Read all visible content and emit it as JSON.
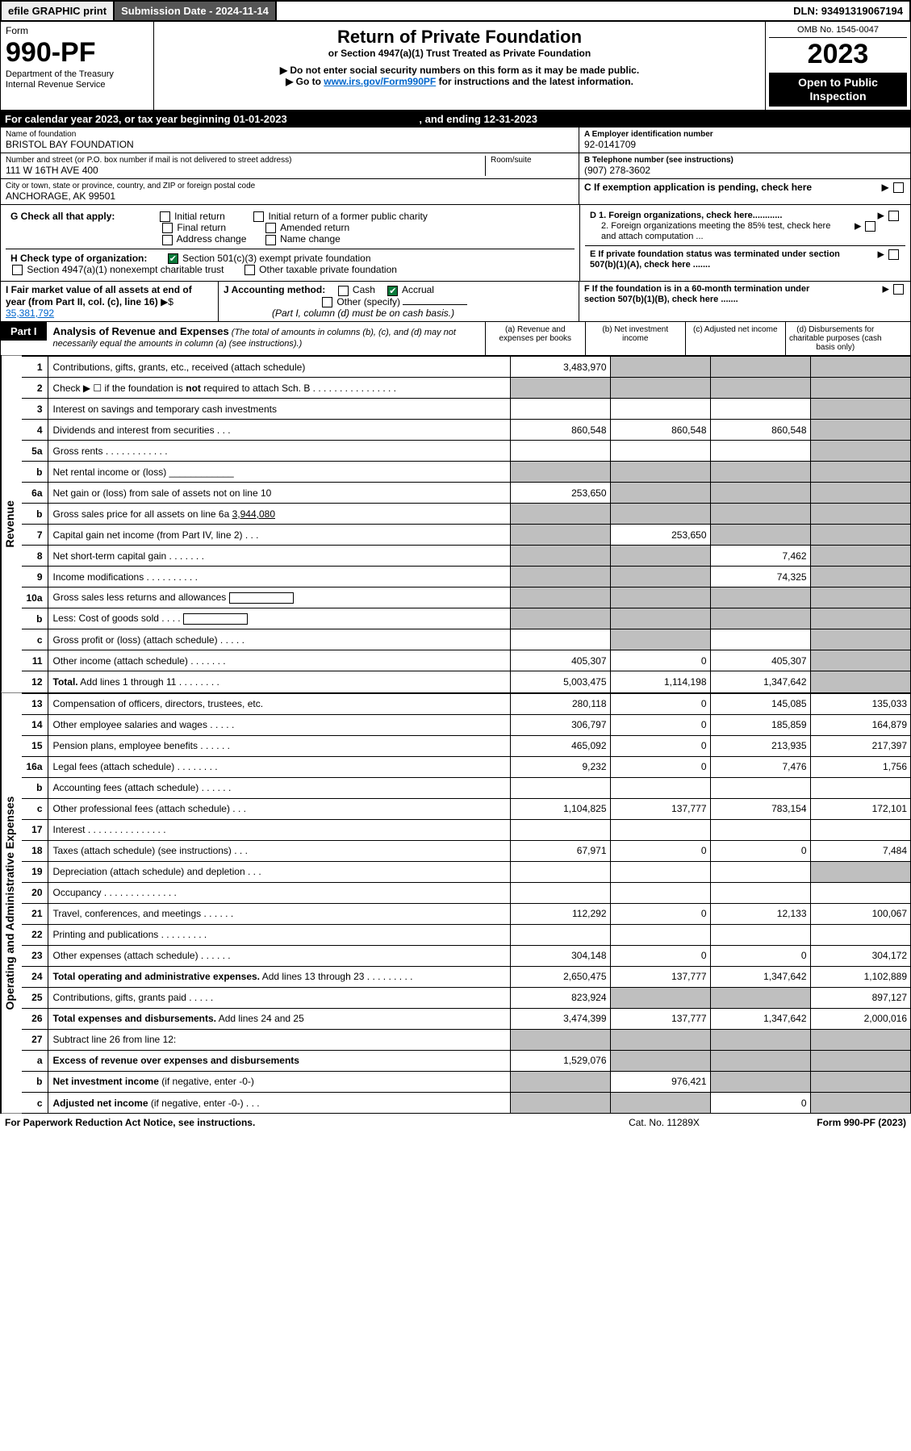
{
  "topbar": {
    "efile": "efile GRAPHIC print",
    "sub": "Submission Date - 2024-11-14",
    "dln": "DLN: 93491319067194"
  },
  "header": {
    "form_word": "Form",
    "form_no": "990-PF",
    "dept": "Department of the Treasury",
    "irs": "Internal Revenue Service",
    "title": "Return of Private Foundation",
    "sub1": "or Section 4947(a)(1) Trust Treated as Private Foundation",
    "sub2": "Do not enter social security numbers on this form as it may be made public.",
    "sub3_a": "Go to ",
    "sub3_link": "www.irs.gov/Form990PF",
    "sub3_b": " for instructions and the latest information.",
    "omb": "OMB No. 1545-0047",
    "year": "2023",
    "open": "Open to Public Inspection"
  },
  "calyear": {
    "a": "For calendar year 2023, or tax year beginning 01-01-2023",
    "b": ", and ending 12-31-2023"
  },
  "info": {
    "name_lbl": "Name of foundation",
    "name": "BRISTOL BAY FOUNDATION",
    "addr_lbl": "Number and street (or P.O. box number if mail is not delivered to street address)",
    "room_lbl": "Room/suite",
    "addr": "111 W 16TH AVE 400",
    "city_lbl": "City or town, state or province, country, and ZIP or foreign postal code",
    "city": "ANCHORAGE, AK  99501",
    "a_lbl": "A Employer identification number",
    "a_val": "92-0141709",
    "b_lbl": "B Telephone number (see instructions)",
    "b_val": "(907) 278-3602",
    "c_lbl": "C If exemption application is pending, check here"
  },
  "g": {
    "lbl": "G Check all that apply:",
    "initial": "Initial return",
    "initial_former": "Initial return of a former public charity",
    "final": "Final return",
    "amended": "Amended return",
    "addr": "Address change",
    "name": "Name change"
  },
  "h": {
    "lbl": "H Check type of organization:",
    "c3": "Section 501(c)(3) exempt private foundation",
    "a1": "Section 4947(a)(1) nonexempt charitable trust",
    "other": "Other taxable private foundation"
  },
  "d": {
    "d1": "D 1. Foreign organizations, check here............",
    "d2": "2. Foreign organizations meeting the 85% test, check here and attach computation ..."
  },
  "e": {
    "txt": "E  If private foundation status was terminated under section 507(b)(1)(A), check here ......."
  },
  "i": {
    "lbl": "I Fair market value of all assets at end of year (from Part II, col. (c), line 16)",
    "val": "35,381,792"
  },
  "j": {
    "lbl": "J Accounting method:",
    "cash": "Cash",
    "accrual": "Accrual",
    "other": "Other (specify)",
    "note": "(Part I, column (d) must be on cash basis.)"
  },
  "f": {
    "txt": "F  If the foundation is in a 60-month termination under section 507(b)(1)(B), check here ......."
  },
  "part1": {
    "tab": "Part I",
    "title": "Analysis of Revenue and Expenses",
    "note": "(The total of amounts in columns (b), (c), and (d) may not necessarily equal the amounts in column (a) (see instructions).)",
    "col_a": "(a)   Revenue and expenses per books",
    "col_b": "(b)   Net investment income",
    "col_c": "(c)   Adjusted net income",
    "col_d": "(d)  Disbursements for charitable purposes (cash basis only)"
  },
  "side": {
    "rev": "Revenue",
    "exp": "Operating and Administrative Expenses"
  },
  "rows": [
    {
      "n": "1",
      "d": "Contributions, gifts, grants, etc., received (attach schedule)",
      "a": "3,483,970",
      "bG": true,
      "cG": true,
      "dG": true
    },
    {
      "n": "2",
      "d": "Check ▶ ☐ if the foundation is <b>not</b> required to attach Sch. B  .  .  .  .  .  .  .  .  .  .  .  .  .  .  .  .",
      "aG": true,
      "bG": true,
      "cG": true,
      "dG": true
    },
    {
      "n": "3",
      "d": "Interest on savings and temporary cash investments",
      "dG": true
    },
    {
      "n": "4",
      "d": "Dividends and interest from securities    .   .   .",
      "a": "860,548",
      "b": "860,548",
      "c": "860,548",
      "dG": true
    },
    {
      "n": "5a",
      "d": "Gross rents     .   .   .   .   .   .   .   .   .   .   .   .",
      "dG": true
    },
    {
      "n": "b",
      "d": "Net rental income or (loss) ____________",
      "aG": true,
      "bG": true,
      "cG": true,
      "dG": true
    },
    {
      "n": "6a",
      "d": "Net gain or (loss) from sale of assets not on line 10",
      "a": "253,650",
      "bG": true,
      "cG": true,
      "dG": true
    },
    {
      "n": "b",
      "d": "Gross sales price for all assets on line 6a <u>       3,944,080</u>",
      "aG": true,
      "bG": true,
      "cG": true,
      "dG": true
    },
    {
      "n": "7",
      "d": "Capital gain net income (from Part IV, line 2)   .   .   .",
      "aG": true,
      "b": "253,650",
      "cG": true,
      "dG": true
    },
    {
      "n": "8",
      "d": "Net short-term capital gain   .   .   .   .   .   .   .",
      "aG": true,
      "bG": true,
      "c": "7,462",
      "dG": true
    },
    {
      "n": "9",
      "d": "Income modifications  .   .   .   .   .   .   .   .   .   .",
      "aG": true,
      "bG": true,
      "c": "74,325",
      "dG": true
    },
    {
      "n": "10a",
      "d": "Gross sales less returns and allowances  <span style='display:inline-block;border:1px solid #000;width:80px;height:14px;vertical-align:middle'></span>",
      "aG": true,
      "bG": true,
      "cG": true,
      "dG": true
    },
    {
      "n": "b",
      "d": "Less: Cost of goods sold    .   .   .   .   <span style='display:inline-block;border:1px solid #000;width:80px;height:14px;vertical-align:middle'></span>",
      "aG": true,
      "bG": true,
      "cG": true,
      "dG": true
    },
    {
      "n": "c",
      "d": "Gross profit or (loss) (attach schedule)    .   .   .   .   .",
      "bG": true,
      "dG": true
    },
    {
      "n": "11",
      "d": "Other income (attach schedule)   .   .   .   .   .   .   .",
      "a": "405,307",
      "b": "0",
      "c": "405,307",
      "dG": true
    },
    {
      "n": "12",
      "d": "<b>Total.</b> Add lines 1 through 11   .   .   .   .   .   .   .   .",
      "a": "5,003,475",
      "b": "1,114,198",
      "c": "1,347,642",
      "dG": true
    }
  ],
  "erows": [
    {
      "n": "13",
      "d": "Compensation of officers, directors, trustees, etc.",
      "a": "280,118",
      "b": "0",
      "c": "145,085",
      "dd": "135,033"
    },
    {
      "n": "14",
      "d": "Other employee salaries and wages    .   .   .   .   .",
      "a": "306,797",
      "b": "0",
      "c": "185,859",
      "dd": "164,879"
    },
    {
      "n": "15",
      "d": "Pension plans, employee benefits  .   .   .   .   .   .",
      "a": "465,092",
      "b": "0",
      "c": "213,935",
      "dd": "217,397"
    },
    {
      "n": "16a",
      "d": "Legal fees (attach schedule)  .   .   .   .   .   .   .   .",
      "a": "9,232",
      "b": "0",
      "c": "7,476",
      "dd": "1,756"
    },
    {
      "n": "b",
      "d": "Accounting fees (attach schedule)  .   .   .   .   .   ."
    },
    {
      "n": "c",
      "d": "Other professional fees (attach schedule)    .   .   .",
      "a": "1,104,825",
      "b": "137,777",
      "c": "783,154",
      "dd": "172,101"
    },
    {
      "n": "17",
      "d": "Interest  .   .   .   .   .   .   .   .   .   .   .   .   .   .   ."
    },
    {
      "n": "18",
      "d": "Taxes (attach schedule) (see instructions)    .   .   .",
      "a": "67,971",
      "b": "0",
      "c": "0",
      "dd": "7,484"
    },
    {
      "n": "19",
      "d": "Depreciation (attach schedule) and depletion    .   .   .",
      "dG": true
    },
    {
      "n": "20",
      "d": "Occupancy  .   .   .   .   .   .   .   .   .   .   .   .   .   ."
    },
    {
      "n": "21",
      "d": "Travel, conferences, and meetings  .   .   .   .   .   .",
      "a": "112,292",
      "b": "0",
      "c": "12,133",
      "dd": "100,067"
    },
    {
      "n": "22",
      "d": "Printing and publications  .   .   .   .   .   .   .   .   ."
    },
    {
      "n": "23",
      "d": "Other expenses (attach schedule)  .   .   .   .   .   .",
      "a": "304,148",
      "b": "0",
      "c": "0",
      "dd": "304,172"
    },
    {
      "n": "24",
      "d": "<b>Total operating and administrative expenses.</b> Add lines 13 through 23   .   .   .   .   .   .   .   .   .",
      "a": "2,650,475",
      "b": "137,777",
      "c": "1,347,642",
      "dd": "1,102,889"
    },
    {
      "n": "25",
      "d": "Contributions, gifts, grants paid    .   .   .   .   .",
      "a": "823,924",
      "bG": true,
      "cG": true,
      "dd": "897,127"
    },
    {
      "n": "26",
      "d": "<b>Total expenses and disbursements.</b> Add lines 24 and 25",
      "a": "3,474,399",
      "b": "137,777",
      "c": "1,347,642",
      "dd": "2,000,016"
    },
    {
      "n": "27",
      "d": "Subtract line 26 from line 12:",
      "aG": true,
      "bG": true,
      "cG": true,
      "dG": true
    },
    {
      "n": "a",
      "d": "<b>Excess of revenue over expenses and disbursements</b>",
      "a": "1,529,076",
      "bG": true,
      "cG": true,
      "dG": true
    },
    {
      "n": "b",
      "d": "<b>Net investment income</b> (if negative, enter -0-)",
      "aG": true,
      "b": "976,421",
      "cG": true,
      "dG": true
    },
    {
      "n": "c",
      "d": "<b>Adjusted net income</b> (if negative, enter -0-)   .   .   .",
      "aG": true,
      "bG": true,
      "c": "0",
      "dG": true
    }
  ],
  "footer": {
    "left": "For Paperwork Reduction Act Notice, see instructions.",
    "mid": "Cat. No. 11289X",
    "right": "Form 990-PF (2023)"
  }
}
